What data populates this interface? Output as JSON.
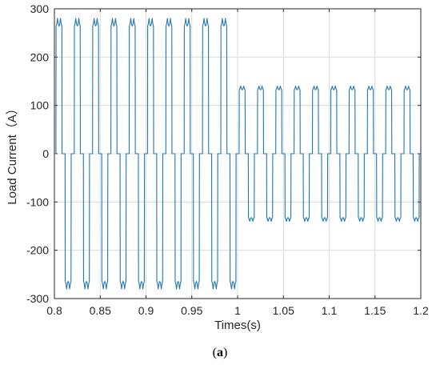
{
  "chart_data": {
    "type": "line",
    "title": "",
    "xlabel": "Times(s)",
    "ylabel": "Load Current（A）",
    "xlim": [
      0.8,
      1.2
    ],
    "ylim": [
      -300,
      300
    ],
    "x_ticks": [
      "0.8",
      "0.85",
      "0.9",
      "0.95",
      "1",
      "1.05",
      "1.1",
      "1.15",
      "1.2"
    ],
    "y_ticks": [
      "300",
      "200",
      "100",
      "0",
      "-100",
      "-200",
      "-300"
    ],
    "grid": true,
    "series": [
      {
        "color": "#1f77b4",
        "waveform": "six-pulse rectifier current (two-hump blocks with zero intervals)",
        "segments": [
          {
            "x_start": 0.8,
            "x_end": 1.0,
            "period": 0.02,
            "peak": 280
          },
          {
            "x_start": 1.0,
            "x_end": 1.2,
            "period": 0.02,
            "peak": 140
          }
        ]
      }
    ]
  },
  "caption": {
    "open": "(",
    "letter": "a",
    "close": ")"
  }
}
